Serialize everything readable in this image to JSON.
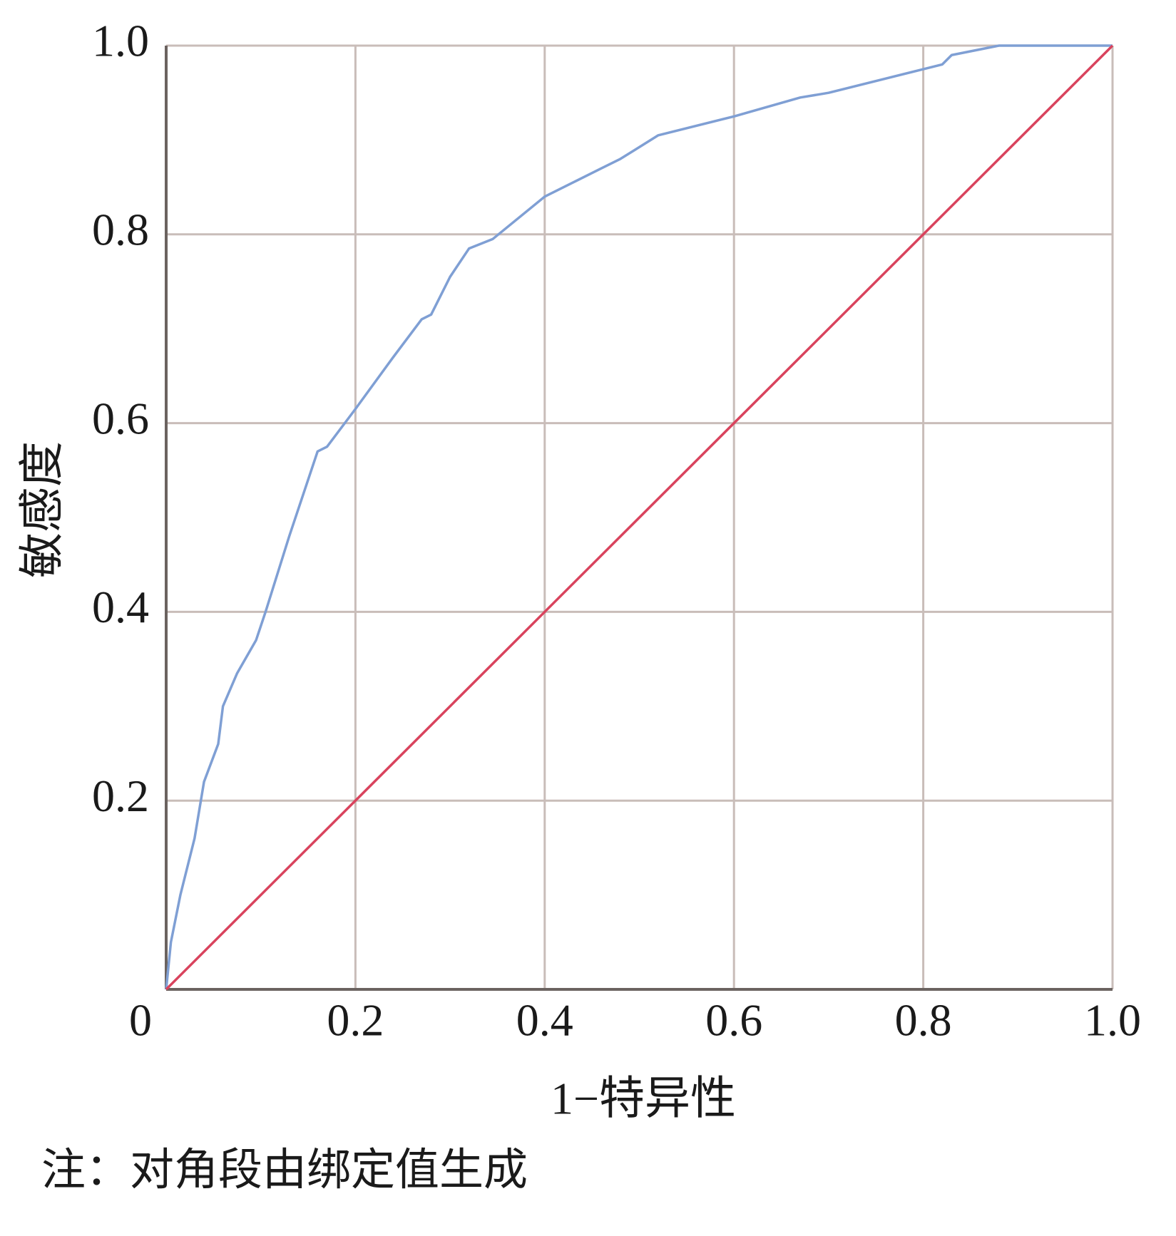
{
  "chart_data": {
    "type": "line",
    "xlabel": "1−特异性",
    "ylabel": "敏感度",
    "note": "注：对角段由绑定值生成",
    "xlim": [
      0,
      1
    ],
    "ylim": [
      0,
      1
    ],
    "xticks": [
      0,
      0.2,
      0.4,
      0.6,
      0.8,
      {
        "value": 1,
        "label": "1.0"
      }
    ],
    "yticks": [
      0.2,
      0.4,
      0.6,
      0.8,
      {
        "value": 1,
        "label": "1.0"
      }
    ],
    "grid": true,
    "series": [
      {
        "color": "#7f9fd4",
        "x": [
          0,
          0.005,
          0.015,
          0.03,
          0.04,
          0.055,
          0.06,
          0.075,
          0.095,
          0.105,
          0.13,
          0.16,
          0.17,
          0.2,
          0.24,
          0.27,
          0.28,
          0.3,
          0.32,
          0.345,
          0.4,
          0.43,
          0.46,
          0.48,
          0.52,
          0.6,
          0.67,
          0.7,
          0.76,
          0.8,
          0.82,
          0.83,
          0.88,
          1.0
        ],
        "values": [
          0,
          0.05,
          0.1,
          0.16,
          0.22,
          0.26,
          0.3,
          0.335,
          0.37,
          0.4,
          0.48,
          0.57,
          0.575,
          0.615,
          0.67,
          0.71,
          0.715,
          0.755,
          0.785,
          0.795,
          0.84,
          0.855,
          0.87,
          0.88,
          0.905,
          0.925,
          0.945,
          0.95,
          0.965,
          0.975,
          0.98,
          0.99,
          1.0,
          1.0
        ]
      },
      {
        "color": "#d9435d",
        "x": [
          0,
          1
        ],
        "values": [
          0,
          1
        ]
      }
    ]
  }
}
